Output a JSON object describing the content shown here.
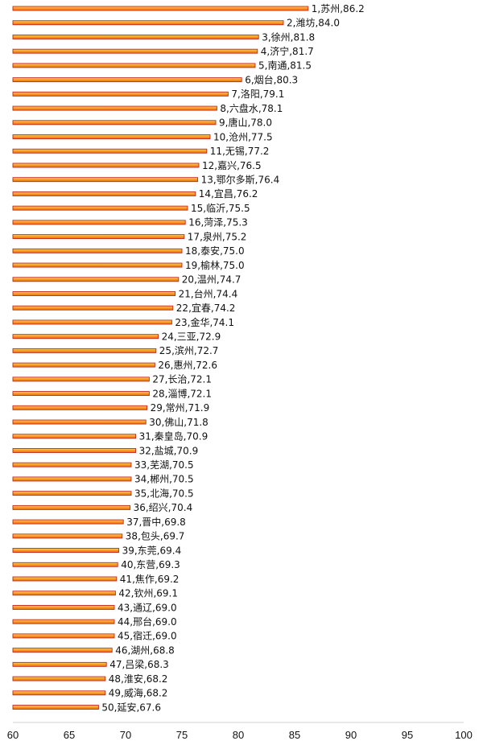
{
  "chart_data": {
    "type": "bar",
    "orientation": "horizontal",
    "bar_color": "#f7941d",
    "bar_edge_color": "#c0281e",
    "xlim": [
      60,
      100
    ],
    "xticks": [
      60,
      65,
      70,
      75,
      80,
      85,
      90,
      95,
      100
    ],
    "grid": false,
    "labels": [
      "1,苏州,86.2",
      "2,潍坊,84.0",
      "3,徐州,81.8",
      "4,济宁,81.7",
      "5,南通,81.5",
      "6,烟台,80.3",
      "7,洛阳,79.1",
      "8,六盘水,78.1",
      "9,唐山,78.0",
      "10,沧州,77.5",
      "11,无锡,77.2",
      "12,嘉兴,76.5",
      "13,鄂尔多斯,76.4",
      "14,宜昌,76.2",
      "15,临沂,75.5",
      "16,菏泽,75.3",
      "17,泉州,75.2",
      "18,泰安,75.0",
      "19,榆林,75.0",
      "20,温州,74.7",
      "21,台州,74.4",
      "22,宜春,74.2",
      "23,金华,74.1",
      "24,三亚,72.9",
      "25,滨州,72.7",
      "26,惠州,72.6",
      "27,长治,72.1",
      "28,淄博,72.1",
      "29,常州,71.9",
      "30,佛山,71.8",
      "31,秦皇岛,70.9",
      "32,盐城,70.9",
      "33,芜湖,70.5",
      "34,郴州,70.5",
      "35,北海,70.5",
      "36,绍兴,70.4",
      "37,晋中,69.8",
      "38,包头,69.7",
      "39,东莞,69.4",
      "40,东营,69.3",
      "41,焦作,69.2",
      "42,钦州,69.1",
      "43,通辽,69.0",
      "44,邢台,69.0",
      "45,宿迁,69.0",
      "46,湖州,68.8",
      "47,吕梁,68.3",
      "48,淮安,68.2",
      "49,威海,68.2",
      "50,延安,67.6"
    ],
    "values": [
      86.2,
      84.0,
      81.8,
      81.7,
      81.5,
      80.3,
      79.1,
      78.1,
      78.0,
      77.5,
      77.2,
      76.5,
      76.4,
      76.2,
      75.5,
      75.3,
      75.2,
      75.0,
      75.0,
      74.7,
      74.4,
      74.2,
      74.1,
      72.9,
      72.7,
      72.6,
      72.1,
      72.1,
      71.9,
      71.8,
      70.9,
      70.9,
      70.5,
      70.5,
      70.5,
      70.4,
      69.8,
      69.7,
      69.4,
      69.3,
      69.2,
      69.1,
      69.0,
      69.0,
      69.0,
      68.8,
      68.3,
      68.2,
      68.2,
      67.6
    ]
  }
}
